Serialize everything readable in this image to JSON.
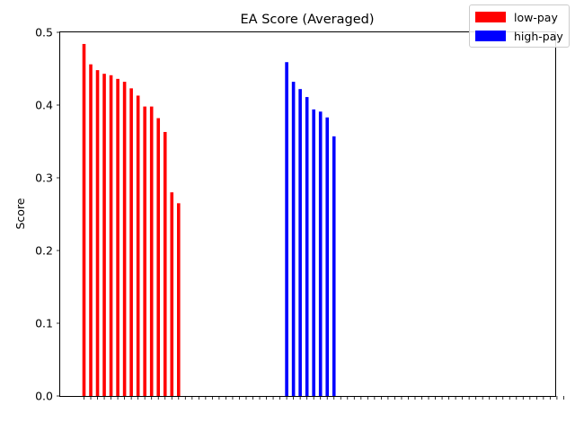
{
  "chart_data": {
    "type": "bar",
    "title": "EA Score (Averaged)",
    "xlabel": "",
    "ylabel": "Score",
    "ylim": [
      0,
      0.5
    ],
    "yticks": [
      "0.0",
      "0.1",
      "0.2",
      "0.3",
      "0.4",
      "0.5"
    ],
    "grid": false,
    "legend_position": "top-right",
    "category_count": 72,
    "tick_labels_unreadable": true,
    "series": [
      {
        "name": "low-pay",
        "color": "#ff0000",
        "start_index": 0,
        "values": [
          0.484,
          0.456,
          0.448,
          0.443,
          0.441,
          0.436,
          0.432,
          0.423,
          0.413,
          0.398,
          0.398,
          0.382,
          0.363,
          0.28,
          0.265
        ]
      },
      {
        "name": "high-pay",
        "color": "#0000ff",
        "start_index": 30,
        "values": [
          0.459,
          0.432,
          0.422,
          0.411,
          0.394,
          0.391,
          0.383,
          0.357
        ]
      }
    ]
  }
}
